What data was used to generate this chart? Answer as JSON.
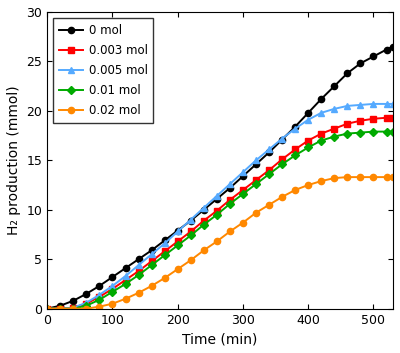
{
  "title": "",
  "xlabel": "Time (min)",
  "ylabel": "H₂ production (mmol)",
  "xlim": [
    0,
    530
  ],
  "ylim": [
    0,
    30
  ],
  "xticks": [
    0,
    100,
    200,
    300,
    400,
    500
  ],
  "yticks": [
    0,
    5,
    10,
    15,
    20,
    25,
    30
  ],
  "series": [
    {
      "label": "0 mol",
      "color": "#000000",
      "marker": "o",
      "markersize": 4.5,
      "linewidth": 1.4,
      "time": [
        0,
        20,
        40,
        60,
        80,
        100,
        120,
        140,
        160,
        180,
        200,
        220,
        240,
        260,
        280,
        300,
        320,
        340,
        360,
        380,
        400,
        420,
        440,
        460,
        480,
        500,
        520,
        530
      ],
      "values": [
        0,
        0.3,
        0.8,
        1.5,
        2.3,
        3.2,
        4.1,
        5.0,
        5.9,
        6.9,
        7.9,
        8.9,
        10.0,
        11.1,
        12.2,
        13.4,
        14.6,
        15.8,
        17.1,
        18.4,
        19.8,
        21.2,
        22.5,
        23.8,
        24.8,
        25.5,
        26.2,
        26.5
      ]
    },
    {
      "label": "0.003 mol",
      "color": "#ff0000",
      "marker": "s",
      "markersize": 4.5,
      "linewidth": 1.4,
      "time": [
        0,
        20,
        40,
        60,
        80,
        100,
        120,
        140,
        160,
        180,
        200,
        220,
        240,
        260,
        280,
        300,
        320,
        340,
        360,
        380,
        400,
        420,
        440,
        460,
        480,
        500,
        520,
        530
      ],
      "values": [
        0,
        0.0,
        0.1,
        0.5,
        1.2,
        2.0,
        2.9,
        3.8,
        4.8,
        5.8,
        6.8,
        7.8,
        8.9,
        9.9,
        11.0,
        12.0,
        13.0,
        14.0,
        15.1,
        16.1,
        17.0,
        17.7,
        18.2,
        18.7,
        19.0,
        19.2,
        19.3,
        19.3
      ]
    },
    {
      "label": "0.005 mol",
      "color": "#55aaff",
      "marker": "^",
      "markersize": 5,
      "linewidth": 1.4,
      "time": [
        0,
        20,
        40,
        60,
        80,
        100,
        120,
        140,
        160,
        180,
        200,
        220,
        240,
        260,
        280,
        300,
        320,
        340,
        360,
        380,
        400,
        420,
        440,
        460,
        480,
        500,
        520,
        530
      ],
      "values": [
        0,
        0.0,
        0.1,
        0.6,
        1.4,
        2.3,
        3.3,
        4.4,
        5.5,
        6.6,
        7.8,
        9.0,
        10.2,
        11.4,
        12.6,
        13.8,
        15.0,
        16.1,
        17.2,
        18.2,
        19.1,
        19.8,
        20.2,
        20.5,
        20.6,
        20.7,
        20.7,
        20.7
      ]
    },
    {
      "label": "0.01 mol",
      "color": "#00aa00",
      "marker": "D",
      "markersize": 4,
      "linewidth": 1.4,
      "time": [
        0,
        20,
        40,
        60,
        80,
        100,
        120,
        140,
        160,
        180,
        200,
        220,
        240,
        260,
        280,
        300,
        320,
        340,
        360,
        380,
        400,
        420,
        440,
        460,
        480,
        500,
        520,
        530
      ],
      "values": [
        0,
        0.0,
        0.0,
        0.3,
        0.9,
        1.7,
        2.5,
        3.4,
        4.4,
        5.4,
        6.4,
        7.4,
        8.5,
        9.5,
        10.6,
        11.6,
        12.6,
        13.6,
        14.6,
        15.5,
        16.3,
        17.0,
        17.4,
        17.7,
        17.8,
        17.9,
        17.9,
        17.9
      ]
    },
    {
      "label": "0.02 mol",
      "color": "#ff8800",
      "marker": "o",
      "markersize": 4.5,
      "linewidth": 1.4,
      "time": [
        0,
        20,
        40,
        60,
        80,
        100,
        120,
        140,
        160,
        180,
        200,
        220,
        240,
        260,
        280,
        300,
        320,
        340,
        360,
        380,
        400,
        420,
        440,
        460,
        480,
        500,
        520,
        530
      ],
      "values": [
        0,
        0.0,
        0.0,
        0.0,
        0.2,
        0.5,
        1.0,
        1.6,
        2.3,
        3.1,
        4.0,
        4.9,
        5.9,
        6.8,
        7.8,
        8.7,
        9.7,
        10.5,
        11.3,
        12.0,
        12.5,
        12.9,
        13.2,
        13.3,
        13.3,
        13.3,
        13.3,
        13.3
      ]
    }
  ],
  "legend_loc": "upper left",
  "legend_fontsize": 8.5,
  "legend_labelspacing": 0.6,
  "axis_fontsize": 10,
  "tick_fontsize": 9,
  "figure_facecolor": "#ffffff",
  "axes_facecolor": "#ffffff"
}
